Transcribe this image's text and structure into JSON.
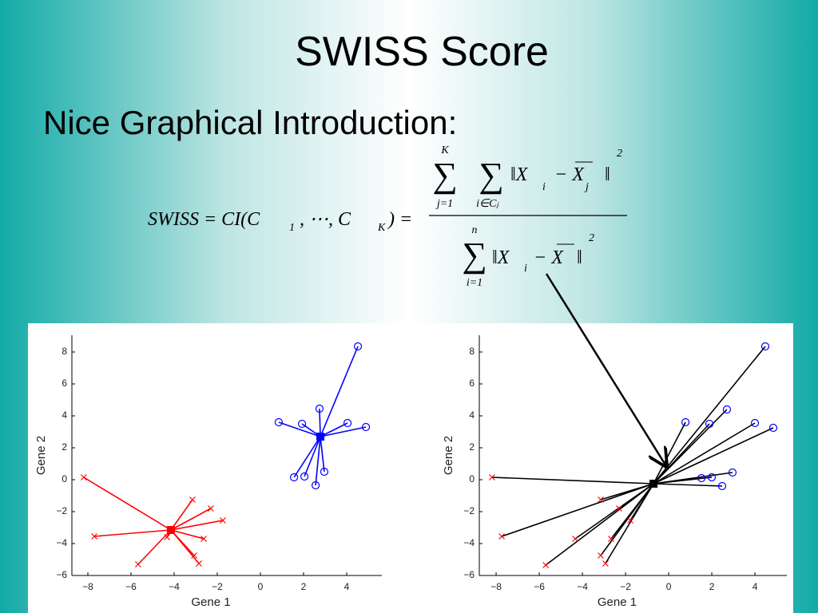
{
  "title": "SWISS Score",
  "subtitle": "Nice Graphical Introduction:",
  "formula": {
    "lhs": [
      "SWISS = CI(C",
      "1",
      ", ⋯, C",
      "K",
      ") ="
    ],
    "sigma": "∑",
    "sum1_top": "K",
    "sum1_bottom": "j=1",
    "sum2_bottom": "i∈Cⱼ",
    "num_body": [
      "‖X",
      "i",
      "− X",
      "j",
      "‖",
      "2"
    ],
    "sum3_top": "n",
    "sum3_bottom": "i=1",
    "den_body": [
      "‖X",
      "i",
      "− X",
      "‖",
      "2"
    ]
  },
  "chart_data": [
    {
      "type": "scatter",
      "xlabel": "Gene 1",
      "ylabel": "Gene 2",
      "xlim": [
        -8.74,
        5.63
      ],
      "ylim": [
        -6,
        9.05
      ],
      "xticks": [
        {
          "value": -8,
          "label": "−8"
        },
        {
          "value": -6,
          "label": "−6"
        },
        {
          "value": -4,
          "label": "−4"
        },
        {
          "value": -2,
          "label": "−2"
        },
        0,
        2,
        4
      ],
      "yticks": [
        {
          "value": -6,
          "label": "−6"
        },
        {
          "value": -4,
          "label": "−4"
        },
        {
          "value": -2,
          "label": "−2"
        },
        0,
        2,
        4,
        6,
        8
      ],
      "series": [
        {
          "color": "#0000ff",
          "marker": "circle",
          "x": [
            4.52,
            0.85,
            1.93,
            2.74,
            4.04,
            4.89,
            1.56,
            2.04,
            2.56,
            2.96
          ],
          "values": [
            8.35,
            3.6,
            3.5,
            4.45,
            3.55,
            3.3,
            0.15,
            0.2,
            -0.35,
            0.5
          ],
          "centroid": {
            "x": 2.78,
            "y": 2.7
          }
        },
        {
          "color": "#ff0000",
          "marker": "x",
          "x": [
            -8.19,
            -7.7,
            -5.67,
            -4.33,
            -3.15,
            -2.3,
            -1.74,
            -2.63,
            -3.07,
            -2.85
          ],
          "values": [
            0.15,
            -3.55,
            -5.3,
            -3.6,
            -1.25,
            -1.8,
            -2.55,
            -3.7,
            -4.75,
            -5.25
          ],
          "centroid": {
            "x": -4.15,
            "y": -3.15
          }
        }
      ]
    },
    {
      "type": "scatter",
      "xlabel": "Gene 1",
      "ylabel": "Gene 2",
      "xlim": [
        -8.78,
        5.48
      ],
      "ylim": [
        -6,
        9.05
      ],
      "xticks": [
        {
          "value": -8,
          "label": "−8"
        },
        {
          "value": -6,
          "label": "−6"
        },
        {
          "value": -4,
          "label": "−4"
        },
        {
          "value": -2,
          "label": "−2"
        },
        0,
        2,
        4
      ],
      "yticks": [
        {
          "value": -6,
          "label": "−6"
        },
        {
          "value": -4,
          "label": "−4"
        },
        {
          "value": -2,
          "label": "−2"
        },
        0,
        2,
        4,
        6,
        8
      ],
      "line_color": "#000000",
      "centroid": {
        "x": -0.7,
        "y": -0.25,
        "color": "#000000"
      },
      "series": [
        {
          "color": "#0000ff",
          "marker": "circle",
          "x": [
            4.48,
            0.78,
            1.89,
            2.7,
            4.0,
            4.85,
            1.52,
            2.0,
            2.48,
            2.96
          ],
          "values": [
            8.35,
            3.6,
            3.5,
            4.4,
            3.55,
            3.25,
            0.1,
            0.15,
            -0.4,
            0.45
          ]
        },
        {
          "color": "#ff0000",
          "marker": "x",
          "x": [
            -8.19,
            -7.74,
            -5.7,
            -4.33,
            -3.15,
            -2.3,
            -1.78,
            -2.67,
            -3.15,
            -2.93
          ],
          "values": [
            0.15,
            -3.55,
            -5.35,
            -3.7,
            -1.25,
            -1.8,
            -2.55,
            -3.7,
            -4.75,
            -5.25
          ]
        }
      ]
    }
  ]
}
